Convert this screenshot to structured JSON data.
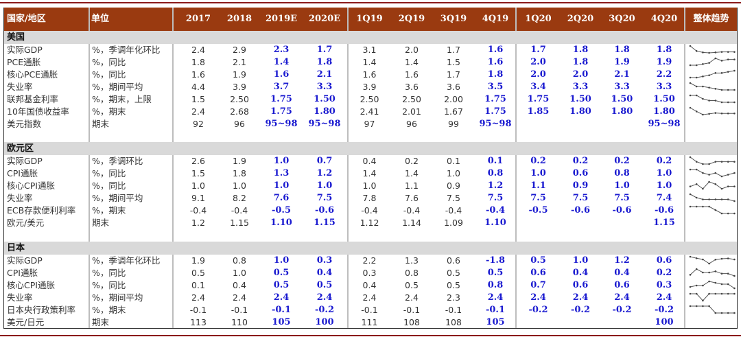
{
  "header": {
    "region": "国家/地区",
    "unit": "单位",
    "columns": [
      "2017",
      "2018",
      "2019E",
      "2020E",
      "1Q19",
      "2Q19",
      "3Q19",
      "4Q19",
      "1Q20",
      "2Q20",
      "3Q20",
      "4Q20"
    ],
    "trend": "整体趋势"
  },
  "colors": {
    "header_bg": "#9a3a10",
    "forecast": "#1a1ad0",
    "section_bg": "#d9d9d9"
  },
  "sections": [
    {
      "name": "美国",
      "rows": [
        {
          "label": "实际GDP",
          "unit": "%，季调年化环比",
          "values": [
            "2.4",
            "2.9",
            "2.3",
            "1.7",
            "3.1",
            "2.0",
            "1.7",
            "1.6",
            "1.7",
            "1.8",
            "1.8",
            "1.8"
          ],
          "trend": true
        },
        {
          "label": "PCE通胀",
          "unit": "%，同比",
          "values": [
            "1.8",
            "2.1",
            "1.4",
            "1.8",
            "1.4",
            "1.4",
            "1.5",
            "1.6",
            "2.0",
            "1.8",
            "1.9",
            "1.9"
          ],
          "trend": true
        },
        {
          "label": "核心PCE通胀",
          "unit": "%，同比",
          "values": [
            "1.6",
            "1.9",
            "1.6",
            "2.1",
            "1.6",
            "1.6",
            "1.7",
            "1.8",
            "2.0",
            "2.0",
            "2.1",
            "2.2"
          ],
          "trend": true
        },
        {
          "label": "失业率",
          "unit": "%，期间平均",
          "values": [
            "4.4",
            "3.9",
            "3.7",
            "3.3",
            "3.9",
            "3.6",
            "3.6",
            "3.5",
            "3.4",
            "3.3",
            "3.3",
            "3.3"
          ],
          "trend": true
        },
        {
          "label": "联邦基金利率",
          "unit": "%，期末，上限",
          "values": [
            "1.5",
            "2.50",
            "1.75",
            "1.50",
            "2.50",
            "2.50",
            "2.00",
            "1.75",
            "1.75",
            "1.50",
            "1.50",
            "1.50"
          ],
          "trend": true
        },
        {
          "label": "10年国债收益率",
          "unit": "%，期末",
          "values": [
            "2.4",
            "2.68",
            "1.75",
            "1.80",
            "2.41",
            "2.01",
            "1.67",
            "1.75",
            "1.85",
            "1.80",
            "1.80",
            "1.80"
          ],
          "trend": true
        },
        {
          "label": "美元指数",
          "unit": "期末",
          "values": [
            "92",
            "96",
            "95~98",
            "95~98",
            "97",
            "96",
            "99",
            "95~98",
            "",
            "",
            "",
            "95~98"
          ],
          "trend": false
        }
      ]
    },
    {
      "name": "欧元区",
      "rows": [
        {
          "label": "实际GDP",
          "unit": "%，季调环比",
          "values": [
            "2.6",
            "1.9",
            "1.0",
            "0.7",
            "0.4",
            "0.2",
            "0.1",
            "0.1",
            "0.2",
            "0.2",
            "0.2",
            "0.2"
          ],
          "trend": true
        },
        {
          "label": "CPI通胀",
          "unit": "%，同比",
          "values": [
            "1.5",
            "1.8",
            "1.3",
            "1.2",
            "1.4",
            "1.4",
            "1.0",
            "0.8",
            "1.0",
            "0.6",
            "0.8",
            "1.0"
          ],
          "trend": true
        },
        {
          "label": "核心CPI通胀",
          "unit": "%，同比",
          "values": [
            "1.0",
            "1.0",
            "1.0",
            "1.0",
            "1.0",
            "1.1",
            "0.9",
            "1.2",
            "1.1",
            "0.9",
            "1.0",
            "1.0"
          ],
          "trend": true
        },
        {
          "label": "失业率",
          "unit": "%，期间平均",
          "values": [
            "9.1",
            "8.2",
            "7.6",
            "7.5",
            "7.8",
            "7.6",
            "7.5",
            "7.5",
            "7.5",
            "7.5",
            "7.5",
            "7.4"
          ],
          "trend": true
        },
        {
          "label": "ECB存款便利利率",
          "unit": "%，期末",
          "values": [
            "-0.4",
            "-0.4",
            "-0.5",
            "-0.6",
            "-0.4",
            "-0.4",
            "-0.4",
            "-0.4",
            "-0.5",
            "-0.6",
            "-0.6",
            "-0.6"
          ],
          "trend": true
        },
        {
          "label": "欧元/美元",
          "unit": "期末",
          "values": [
            "1.2",
            "1.15",
            "1.10",
            "1.15",
            "1.12",
            "1.14",
            "1.09",
            "1.10",
            "",
            "",
            "",
            "1.15"
          ],
          "trend": false
        }
      ]
    },
    {
      "name": "日本",
      "rows": [
        {
          "label": "实际GDP",
          "unit": "%，季调年化环比",
          "values": [
            "1.9",
            "0.8",
            "1.0",
            "0.3",
            "2.2",
            "1.3",
            "0.6",
            "-1.8",
            "0.5",
            "1.0",
            "1.2",
            "0.6"
          ],
          "trend": true
        },
        {
          "label": "CPI通胀",
          "unit": "%，同比",
          "values": [
            "0.5",
            "1.0",
            "0.5",
            "0.4",
            "0.3",
            "0.8",
            "0.5",
            "0.5",
            "0.6",
            "0.4",
            "0.4",
            "0.2"
          ],
          "trend": true
        },
        {
          "label": "核心CPI通胀",
          "unit": "%，同比",
          "values": [
            "0.1",
            "0.4",
            "0.5",
            "0.5",
            "0.4",
            "0.5",
            "0.5",
            "0.8",
            "0.7",
            "0.6",
            "0.6",
            "0.3"
          ],
          "trend": true
        },
        {
          "label": "失业率",
          "unit": "%，期间平均",
          "values": [
            "2.4",
            "2.4",
            "2.4",
            "2.4",
            "2.4",
            "2.4",
            "2.3",
            "2.4",
            "2.4",
            "2.4",
            "2.4",
            "2.4"
          ],
          "trend": true
        },
        {
          "label": "日本央行政策利率",
          "unit": "%，期末",
          "values": [
            "-0.1",
            "-0.1",
            "-0.1",
            "-0.2",
            "-0.1",
            "-0.1",
            "-0.1",
            "-0.1",
            "-0.2",
            "-0.2",
            "-0.2",
            "-0.2"
          ],
          "trend": true
        },
        {
          "label": "美元/日元",
          "unit": "期末",
          "values": [
            "113",
            "110",
            "105",
            "100",
            "111",
            "108",
            "108",
            "105",
            "",
            "",
            "",
            "100"
          ],
          "trend": false
        }
      ]
    }
  ]
}
